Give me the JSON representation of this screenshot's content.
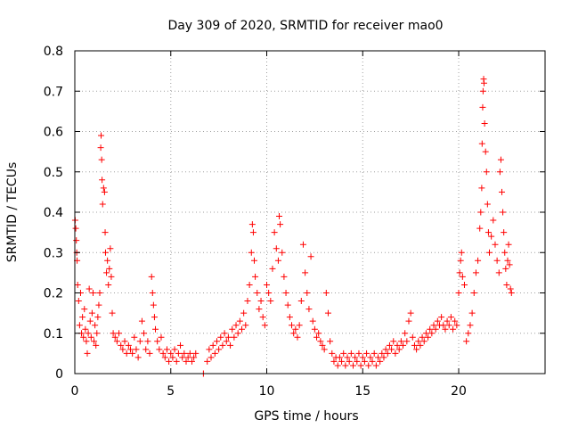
{
  "chart_data": {
    "type": "scatter",
    "title": "Day 309 of 2020, SRMTID for receiver mao0",
    "xlabel": "GPS time / hours",
    "ylabel": "SRMTID / TECUs",
    "xlim": [
      0,
      24.5
    ],
    "ylim": [
      0,
      0.8
    ],
    "xticks": [
      0,
      5,
      10,
      15,
      20
    ],
    "xtick_labels": [
      "0",
      "5",
      "10",
      "15",
      "20"
    ],
    "yticks": [
      0,
      0.1,
      0.2,
      0.3,
      0.4,
      0.5,
      0.6,
      0.7,
      0.8
    ],
    "ytick_labels": [
      "0",
      "0.1",
      "0.2",
      "0.3",
      "0.4",
      "0.5",
      "0.6",
      "0.7",
      "0.8"
    ],
    "grid": true,
    "marker": "plus",
    "color": "#ff0000",
    "series": [
      {
        "name": "SRMTID",
        "points": [
          [
            0.02,
            0.38
          ],
          [
            0.05,
            0.36
          ],
          [
            0.08,
            0.33
          ],
          [
            0.1,
            0.3
          ],
          [
            0.12,
            0.28
          ],
          [
            0.15,
            0.22
          ],
          [
            0.2,
            0.18
          ],
          [
            0.25,
            0.12
          ],
          [
            0.3,
            0.2
          ],
          [
            0.35,
            0.1
          ],
          [
            0.4,
            0.14
          ],
          [
            0.45,
            0.09
          ],
          [
            0.5,
            0.16
          ],
          [
            0.55,
            0.11
          ],
          [
            0.6,
            0.08
          ],
          [
            0.65,
            0.05
          ],
          [
            0.7,
            0.1
          ],
          [
            0.75,
            0.21
          ],
          [
            0.8,
            0.13
          ],
          [
            0.85,
            0.09
          ],
          [
            0.9,
            0.15
          ],
          [
            0.95,
            0.2
          ],
          [
            1.0,
            0.08
          ],
          [
            1.05,
            0.12
          ],
          [
            1.1,
            0.07
          ],
          [
            1.15,
            0.1
          ],
          [
            1.2,
            0.14
          ],
          [
            1.25,
            0.17
          ],
          [
            1.3,
            0.2
          ],
          [
            1.35,
            0.56
          ],
          [
            1.37,
            0.59
          ],
          [
            1.4,
            0.53
          ],
          [
            1.42,
            0.48
          ],
          [
            1.45,
            0.42
          ],
          [
            1.5,
            0.46
          ],
          [
            1.55,
            0.45
          ],
          [
            1.58,
            0.35
          ],
          [
            1.6,
            0.3
          ],
          [
            1.65,
            0.25
          ],
          [
            1.7,
            0.28
          ],
          [
            1.75,
            0.22
          ],
          [
            1.8,
            0.26
          ],
          [
            1.85,
            0.31
          ],
          [
            1.9,
            0.24
          ],
          [
            1.95,
            0.15
          ],
          [
            2.0,
            0.1
          ],
          [
            2.1,
            0.09
          ],
          [
            2.2,
            0.08
          ],
          [
            2.3,
            0.1
          ],
          [
            2.4,
            0.07
          ],
          [
            2.5,
            0.06
          ],
          [
            2.6,
            0.08
          ],
          [
            2.7,
            0.05
          ],
          [
            2.8,
            0.07
          ],
          [
            2.9,
            0.06
          ],
          [
            3.0,
            0.05
          ],
          [
            3.1,
            0.09
          ],
          [
            3.2,
            0.06
          ],
          [
            3.3,
            0.04
          ],
          [
            3.4,
            0.08
          ],
          [
            3.5,
            0.13
          ],
          [
            3.6,
            0.1
          ],
          [
            3.7,
            0.06
          ],
          [
            3.8,
            0.08
          ],
          [
            3.9,
            0.05
          ],
          [
            4.0,
            0.24
          ],
          [
            4.05,
            0.2
          ],
          [
            4.1,
            0.17
          ],
          [
            4.15,
            0.14
          ],
          [
            4.2,
            0.11
          ],
          [
            4.3,
            0.08
          ],
          [
            4.4,
            0.06
          ],
          [
            4.5,
            0.09
          ],
          [
            4.6,
            0.05
          ],
          [
            4.7,
            0.04
          ],
          [
            4.8,
            0.06
          ],
          [
            4.9,
            0.03
          ],
          [
            5.0,
            0.05
          ],
          [
            5.1,
            0.04
          ],
          [
            5.2,
            0.06
          ],
          [
            5.3,
            0.03
          ],
          [
            5.4,
            0.05
          ],
          [
            5.5,
            0.07
          ],
          [
            5.6,
            0.04
          ],
          [
            5.7,
            0.05
          ],
          [
            5.8,
            0.03
          ],
          [
            5.9,
            0.04
          ],
          [
            6.0,
            0.05
          ],
          [
            6.1,
            0.03
          ],
          [
            6.2,
            0.04
          ],
          [
            6.3,
            0.05
          ],
          [
            6.7,
            0.0
          ],
          [
            6.9,
            0.03
          ],
          [
            7.0,
            0.06
          ],
          [
            7.1,
            0.04
          ],
          [
            7.2,
            0.07
          ],
          [
            7.3,
            0.05
          ],
          [
            7.4,
            0.08
          ],
          [
            7.5,
            0.06
          ],
          [
            7.6,
            0.09
          ],
          [
            7.7,
            0.07
          ],
          [
            7.8,
            0.1
          ],
          [
            7.9,
            0.08
          ],
          [
            8.0,
            0.09
          ],
          [
            8.1,
            0.07
          ],
          [
            8.2,
            0.11
          ],
          [
            8.3,
            0.09
          ],
          [
            8.4,
            0.12
          ],
          [
            8.5,
            0.1
          ],
          [
            8.6,
            0.13
          ],
          [
            8.7,
            0.11
          ],
          [
            8.8,
            0.15
          ],
          [
            8.9,
            0.12
          ],
          [
            9.0,
            0.18
          ],
          [
            9.1,
            0.22
          ],
          [
            9.2,
            0.3
          ],
          [
            9.25,
            0.37
          ],
          [
            9.3,
            0.35
          ],
          [
            9.35,
            0.28
          ],
          [
            9.4,
            0.24
          ],
          [
            9.5,
            0.2
          ],
          [
            9.6,
            0.16
          ],
          [
            9.7,
            0.18
          ],
          [
            9.8,
            0.14
          ],
          [
            9.9,
            0.12
          ],
          [
            10.0,
            0.22
          ],
          [
            10.1,
            0.2
          ],
          [
            10.2,
            0.18
          ],
          [
            10.3,
            0.26
          ],
          [
            10.4,
            0.35
          ],
          [
            10.5,
            0.31
          ],
          [
            10.6,
            0.28
          ],
          [
            10.65,
            0.39
          ],
          [
            10.7,
            0.37
          ],
          [
            10.8,
            0.3
          ],
          [
            10.9,
            0.24
          ],
          [
            11.0,
            0.2
          ],
          [
            11.1,
            0.17
          ],
          [
            11.2,
            0.14
          ],
          [
            11.3,
            0.12
          ],
          [
            11.4,
            0.1
          ],
          [
            11.5,
            0.11
          ],
          [
            11.6,
            0.09
          ],
          [
            11.7,
            0.12
          ],
          [
            11.8,
            0.18
          ],
          [
            11.9,
            0.32
          ],
          [
            12.0,
            0.25
          ],
          [
            12.1,
            0.2
          ],
          [
            12.2,
            0.16
          ],
          [
            12.3,
            0.29
          ],
          [
            12.4,
            0.13
          ],
          [
            12.5,
            0.11
          ],
          [
            12.6,
            0.09
          ],
          [
            12.7,
            0.1
          ],
          [
            12.8,
            0.08
          ],
          [
            12.9,
            0.07
          ],
          [
            13.0,
            0.06
          ],
          [
            13.1,
            0.2
          ],
          [
            13.2,
            0.15
          ],
          [
            13.3,
            0.08
          ],
          [
            13.4,
            0.05
          ],
          [
            13.5,
            0.03
          ],
          [
            13.6,
            0.04
          ],
          [
            13.7,
            0.02
          ],
          [
            13.8,
            0.04
          ],
          [
            13.9,
            0.03
          ],
          [
            14.0,
            0.05
          ],
          [
            14.1,
            0.02
          ],
          [
            14.2,
            0.04
          ],
          [
            14.3,
            0.03
          ],
          [
            14.4,
            0.05
          ],
          [
            14.5,
            0.02
          ],
          [
            14.6,
            0.04
          ],
          [
            14.7,
            0.03
          ],
          [
            14.8,
            0.05
          ],
          [
            14.9,
            0.02
          ],
          [
            15.0,
            0.04
          ],
          [
            15.1,
            0.03
          ],
          [
            15.2,
            0.05
          ],
          [
            15.3,
            0.02
          ],
          [
            15.4,
            0.04
          ],
          [
            15.5,
            0.03
          ],
          [
            15.6,
            0.05
          ],
          [
            15.7,
            0.02
          ],
          [
            15.8,
            0.04
          ],
          [
            15.9,
            0.03
          ],
          [
            16.0,
            0.05
          ],
          [
            16.1,
            0.04
          ],
          [
            16.2,
            0.06
          ],
          [
            16.3,
            0.05
          ],
          [
            16.4,
            0.07
          ],
          [
            16.5,
            0.06
          ],
          [
            16.6,
            0.08
          ],
          [
            16.7,
            0.05
          ],
          [
            16.8,
            0.07
          ],
          [
            16.9,
            0.06
          ],
          [
            17.0,
            0.08
          ],
          [
            17.1,
            0.07
          ],
          [
            17.2,
            0.1
          ],
          [
            17.3,
            0.08
          ],
          [
            17.4,
            0.13
          ],
          [
            17.5,
            0.15
          ],
          [
            17.6,
            0.09
          ],
          [
            17.7,
            0.07
          ],
          [
            17.8,
            0.06
          ],
          [
            17.9,
            0.08
          ],
          [
            18.0,
            0.07
          ],
          [
            18.1,
            0.09
          ],
          [
            18.2,
            0.08
          ],
          [
            18.3,
            0.1
          ],
          [
            18.4,
            0.09
          ],
          [
            18.5,
            0.11
          ],
          [
            18.6,
            0.1
          ],
          [
            18.7,
            0.12
          ],
          [
            18.8,
            0.11
          ],
          [
            18.9,
            0.13
          ],
          [
            19.0,
            0.12
          ],
          [
            19.1,
            0.14
          ],
          [
            19.2,
            0.12
          ],
          [
            19.3,
            0.11
          ],
          [
            19.4,
            0.13
          ],
          [
            19.5,
            0.12
          ],
          [
            19.6,
            0.14
          ],
          [
            19.7,
            0.11
          ],
          [
            19.8,
            0.13
          ],
          [
            19.9,
            0.12
          ],
          [
            20.0,
            0.2
          ],
          [
            20.05,
            0.25
          ],
          [
            20.1,
            0.28
          ],
          [
            20.15,
            0.3
          ],
          [
            20.2,
            0.24
          ],
          [
            20.3,
            0.22
          ],
          [
            20.4,
            0.08
          ],
          [
            20.5,
            0.1
          ],
          [
            20.6,
            0.12
          ],
          [
            20.7,
            0.15
          ],
          [
            20.8,
            0.2
          ],
          [
            20.9,
            0.25
          ],
          [
            21.0,
            0.28
          ],
          [
            21.1,
            0.36
          ],
          [
            21.15,
            0.4
          ],
          [
            21.2,
            0.46
          ],
          [
            21.22,
            0.57
          ],
          [
            21.25,
            0.66
          ],
          [
            21.27,
            0.7
          ],
          [
            21.3,
            0.73
          ],
          [
            21.32,
            0.72
          ],
          [
            21.35,
            0.62
          ],
          [
            21.4,
            0.55
          ],
          [
            21.45,
            0.5
          ],
          [
            21.5,
            0.42
          ],
          [
            21.55,
            0.35
          ],
          [
            21.6,
            0.3
          ],
          [
            21.7,
            0.34
          ],
          [
            21.8,
            0.38
          ],
          [
            21.9,
            0.32
          ],
          [
            22.0,
            0.28
          ],
          [
            22.1,
            0.25
          ],
          [
            22.15,
            0.5
          ],
          [
            22.2,
            0.53
          ],
          [
            22.25,
            0.45
          ],
          [
            22.3,
            0.4
          ],
          [
            22.35,
            0.35
          ],
          [
            22.4,
            0.3
          ],
          [
            22.45,
            0.26
          ],
          [
            22.5,
            0.22
          ],
          [
            22.55,
            0.28
          ],
          [
            22.6,
            0.32
          ],
          [
            22.65,
            0.27
          ],
          [
            22.7,
            0.21
          ],
          [
            22.75,
            0.2
          ]
        ]
      }
    ]
  }
}
